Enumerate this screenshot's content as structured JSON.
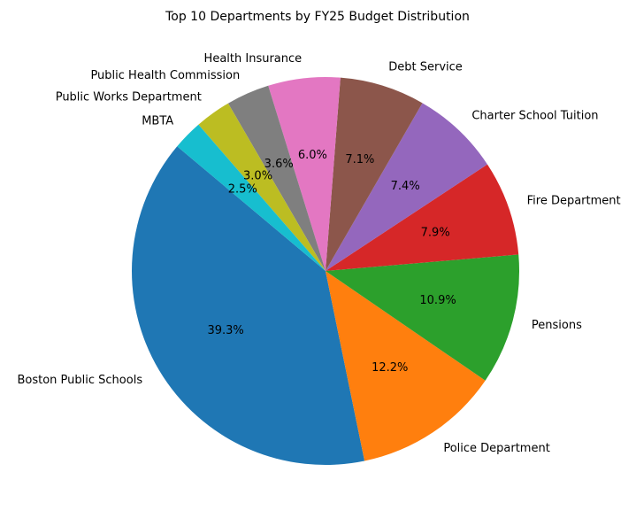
{
  "chart_data": {
    "type": "pie",
    "title": "Top 10 Departments by FY25 Budget Distribution",
    "slices": [
      {
        "label": "Boston Public Schools",
        "value": 39.3,
        "pct_label": "39.3%",
        "color": "#1f77b4"
      },
      {
        "label": "Police Department",
        "value": 12.2,
        "pct_label": "12.2%",
        "color": "#ff7f0e"
      },
      {
        "label": "Pensions",
        "value": 10.9,
        "pct_label": "10.9%",
        "color": "#2ca02c"
      },
      {
        "label": "Fire Department",
        "value": 7.9,
        "pct_label": "7.9%",
        "color": "#d62728"
      },
      {
        "label": "Charter School Tuition",
        "value": 7.4,
        "pct_label": "7.4%",
        "color": "#9467bd"
      },
      {
        "label": "Debt Service",
        "value": 7.1,
        "pct_label": "7.1%",
        "color": "#8c564b"
      },
      {
        "label": "Health Insurance",
        "value": 6.0,
        "pct_label": "6.0%",
        "color": "#e377c2"
      },
      {
        "label": "Public Health Commission",
        "value": 3.6,
        "pct_label": "3.6%",
        "color": "#7f7f7f"
      },
      {
        "label": "Public Works Department",
        "value": 3.0,
        "pct_label": "3.0%",
        "color": "#bcbd22"
      },
      {
        "label": "MBTA",
        "value": 2.5,
        "pct_label": "2.5%",
        "color": "#17becf"
      }
    ]
  }
}
